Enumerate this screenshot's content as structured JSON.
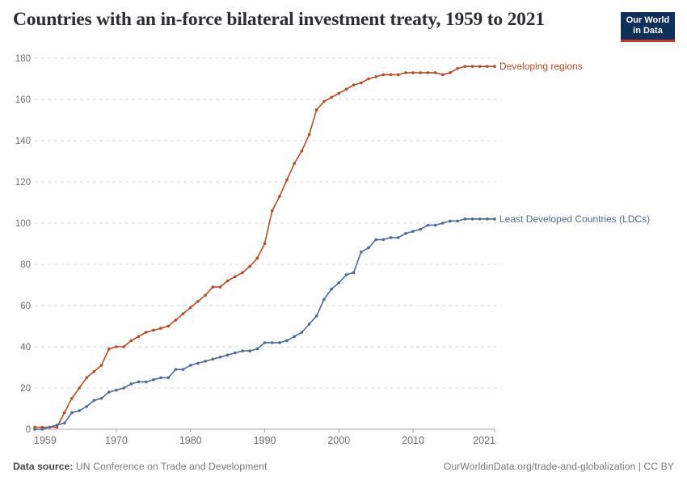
{
  "header": {
    "title": "Countries with an in-force bilateral investment treaty, 1959 to 2021"
  },
  "logo": {
    "line1": "Our World",
    "line2": "in Data",
    "bg_color": "#10305C",
    "bar_color": "#CD3A2B"
  },
  "footer": {
    "source_label": "Data source:",
    "source_value": " UN Conference on Trade and Development",
    "right": "OurWorldinData.org/trade-and-globalization | CC BY"
  },
  "chart_data": {
    "type": "line",
    "title": "Countries with an in-force bilateral investment treaty, 1959 to 2021",
    "xlabel": "",
    "ylabel": "",
    "xlim": [
      1959,
      2021
    ],
    "ylim": [
      0,
      180
    ],
    "xticks": [
      1959,
      1970,
      1980,
      1990,
      2000,
      2010,
      2021
    ],
    "yticks": [
      0,
      20,
      40,
      60,
      80,
      100,
      120,
      140,
      160,
      180
    ],
    "grid": "horizontal-dashed",
    "legend_position": "line-end-labels",
    "x": [
      1959,
      1960,
      1961,
      1962,
      1963,
      1964,
      1965,
      1966,
      1967,
      1968,
      1969,
      1970,
      1971,
      1972,
      1973,
      1974,
      1975,
      1976,
      1977,
      1978,
      1979,
      1980,
      1981,
      1982,
      1983,
      1984,
      1985,
      1986,
      1987,
      1988,
      1989,
      1990,
      1991,
      1992,
      1993,
      1994,
      1995,
      1996,
      1997,
      1998,
      1999,
      2000,
      2001,
      2002,
      2003,
      2004,
      2005,
      2006,
      2007,
      2008,
      2009,
      2010,
      2011,
      2012,
      2013,
      2014,
      2015,
      2016,
      2017,
      2018,
      2019,
      2020,
      2021
    ],
    "series": [
      {
        "name": "Developing regions",
        "color": "#BC4B22",
        "values": [
          1,
          1,
          1,
          1,
          8,
          15,
          20,
          25,
          28,
          31,
          39,
          40,
          40,
          43,
          45,
          47,
          48,
          49,
          50,
          53,
          56,
          59,
          62,
          65,
          69,
          69,
          72,
          74,
          76,
          79,
          83,
          90,
          106,
          113,
          121,
          129,
          135,
          143,
          155,
          159,
          161,
          163,
          165,
          167,
          168,
          170,
          171,
          172,
          172,
          172,
          173,
          173,
          173,
          173,
          173,
          172,
          173,
          175,
          176,
          176,
          176,
          176,
          176
        ]
      },
      {
        "name": "Least Developed Countries (LDCs)",
        "color": "#4C6A9C",
        "values": [
          0,
          0,
          1,
          2,
          3,
          8,
          9,
          11,
          14,
          15,
          18,
          19,
          20,
          22,
          23,
          23,
          24,
          25,
          25,
          29,
          29,
          31,
          32,
          33,
          34,
          35,
          36,
          37,
          38,
          38,
          39,
          42,
          42,
          42,
          43,
          45,
          47,
          51,
          55,
          63,
          68,
          71,
          75,
          76,
          86,
          88,
          92,
          92,
          93,
          93,
          95,
          96,
          97,
          99,
          99,
          100,
          101,
          101,
          102,
          102,
          102,
          102,
          102
        ]
      }
    ],
    "axis_color": "#a6a6a6",
    "grid_color": "#dadada",
    "tick_label_color": "#6e6e6e"
  }
}
